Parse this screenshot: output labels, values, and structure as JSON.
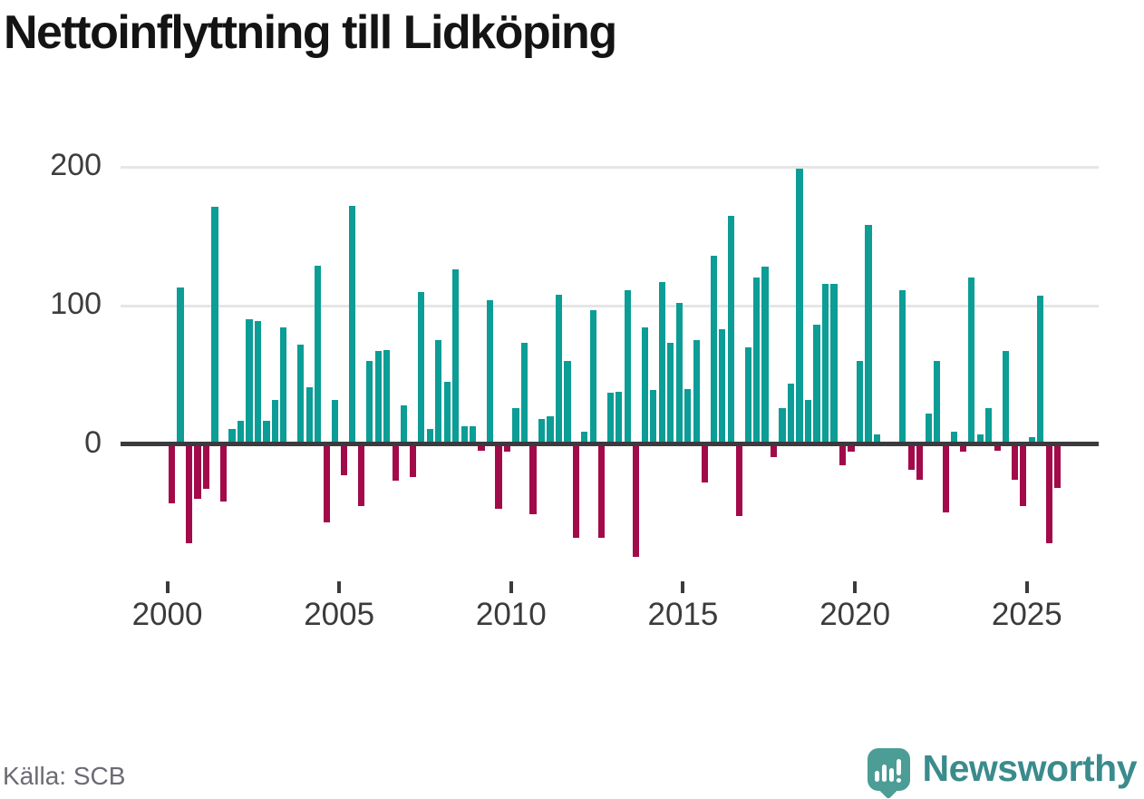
{
  "title": "Nettoinflyttning till Lidköping",
  "source": "Källa: SCB",
  "brand": {
    "name": "Newsworthy",
    "icon": "newsworthy-speech-bubble-bar-chart-icon"
  },
  "colors": {
    "positive_bar": "#0b9d96",
    "negative_bar": "#a20a4a",
    "axis": "#3b3b3e",
    "gridline": "#e6e6e6",
    "tick_label": "#3d3d3d",
    "title_text": "#141414",
    "source_text": "#6b6b74",
    "brand_teal": "#3a8b8c",
    "background": "#ffffff"
  },
  "chart_data": {
    "type": "bar",
    "title": "Nettoinflyttning till Lidköping",
    "xlabel": "",
    "ylabel": "",
    "y_axis_ticks": [
      "0",
      "100",
      "200"
    ],
    "y_axis_tick_values": [
      0,
      100,
      200
    ],
    "x_axis_ticks": [
      "2000",
      "2005",
      "2010",
      "2015",
      "2020",
      "2025"
    ],
    "ylim": [
      -100,
      225
    ],
    "grid": "horizontal-at-100-and-200",
    "legend": "none",
    "baseline": 0,
    "frequency": "quarterly",
    "categories": [
      "2000 Q1",
      "2000 Q2",
      "2000 Q3",
      "2000 Q4",
      "2001 Q1",
      "2001 Q2",
      "2001 Q3",
      "2001 Q4",
      "2002 Q1",
      "2002 Q2",
      "2002 Q3",
      "2002 Q4",
      "2003 Q1",
      "2003 Q2",
      "2003 Q3",
      "2003 Q4",
      "2004 Q1",
      "2004 Q2",
      "2004 Q3",
      "2004 Q4",
      "2005 Q1",
      "2005 Q2",
      "2005 Q3",
      "2005 Q4",
      "2006 Q1",
      "2006 Q2",
      "2006 Q3",
      "2006 Q4",
      "2007 Q1",
      "2007 Q2",
      "2007 Q3",
      "2007 Q4",
      "2008 Q1",
      "2008 Q2",
      "2008 Q3",
      "2008 Q4",
      "2009 Q1",
      "2009 Q2",
      "2009 Q3",
      "2009 Q4",
      "2010 Q1",
      "2010 Q2",
      "2010 Q3",
      "2010 Q4",
      "2011 Q1",
      "2011 Q2",
      "2011 Q3",
      "2011 Q4",
      "2012 Q1",
      "2012 Q2",
      "2012 Q3",
      "2012 Q4",
      "2013 Q1",
      "2013 Q2",
      "2013 Q3",
      "2013 Q4",
      "2014 Q1",
      "2014 Q2",
      "2014 Q3",
      "2014 Q4",
      "2015 Q1",
      "2015 Q2",
      "2015 Q3",
      "2015 Q4",
      "2016 Q1",
      "2016 Q2",
      "2016 Q3",
      "2016 Q4",
      "2017 Q1",
      "2017 Q2",
      "2017 Q3",
      "2017 Q4",
      "2018 Q1",
      "2018 Q2",
      "2018 Q3",
      "2018 Q4",
      "2019 Q1",
      "2019 Q2",
      "2019 Q3",
      "2019 Q4",
      "2020 Q1",
      "2020 Q2",
      "2020 Q3",
      "2020 Q4",
      "2021 Q1",
      "2021 Q2",
      "2021 Q3",
      "2021 Q4",
      "2022 Q1",
      "2022 Q2",
      "2022 Q3",
      "2022 Q4",
      "2023 Q1",
      "2023 Q2",
      "2023 Q3",
      "2023 Q4",
      "2024 Q1",
      "2024 Q2",
      "2024 Q3",
      "2024 Q4",
      "2025 Q1",
      "2025 Q2",
      "2025 Q3",
      "2025 Q4"
    ],
    "values": [
      -41,
      113,
      -70,
      -38,
      -31,
      171,
      -40,
      11,
      17,
      90,
      89,
      17,
      32,
      84,
      0,
      72,
      41,
      129,
      -55,
      32,
      -21,
      172,
      -43,
      60,
      67,
      68,
      -25,
      28,
      -22,
      110,
      11,
      75,
      45,
      126,
      13,
      13,
      -3,
      104,
      -45,
      -4,
      26,
      73,
      -49,
      18,
      20,
      108,
      60,
      -66,
      9,
      97,
      -66,
      37,
      38,
      111,
      -80,
      84,
      39,
      117,
      73,
      102,
      40,
      75,
      -26,
      136,
      83,
      165,
      -50,
      70,
      120,
      128,
      -8,
      26,
      44,
      199,
      32,
      86,
      116,
      116,
      -14,
      -4,
      60,
      158,
      7,
      2,
      0,
      111,
      -17,
      -24,
      22,
      60,
      -48,
      9,
      -4,
      120,
      7,
      26,
      -3,
      67,
      -24,
      -43,
      5,
      107,
      -70,
      -30
    ]
  }
}
